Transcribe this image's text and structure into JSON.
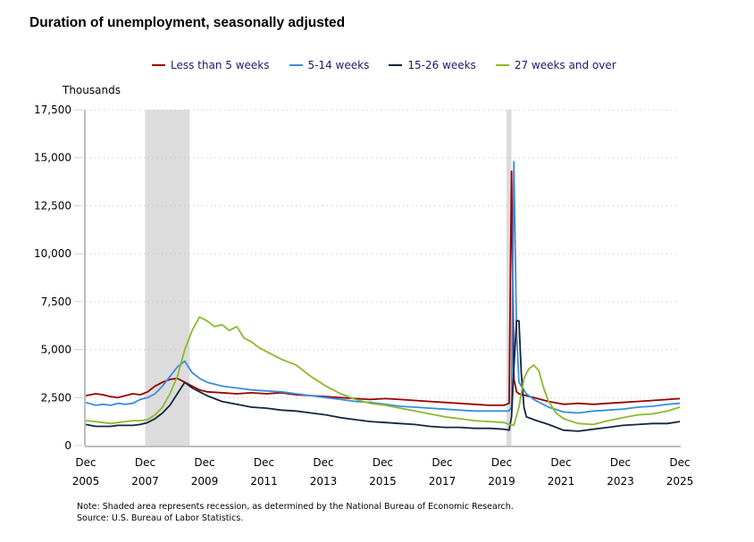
{
  "chart_data": {
    "type": "line",
    "title": "Duration of unemployment, seasonally adjusted",
    "ylabel": "Thousands",
    "xlabel": "",
    "ylim": [
      0,
      17500
    ],
    "yticks": [
      0,
      2500,
      5000,
      7500,
      10000,
      12500,
      15000,
      17500
    ],
    "ytick_labels": [
      "0",
      "2,500",
      "5,000",
      "7,500",
      "10,000",
      "12,500",
      "15,000",
      "17,500"
    ],
    "xlim": [
      2005.917,
      2025.917
    ],
    "xticks": [
      {
        "x": 2005.917,
        "month": "Dec",
        "year": "2005"
      },
      {
        "x": 2007.917,
        "month": "Dec",
        "year": "2007"
      },
      {
        "x": 2009.917,
        "month": "Dec",
        "year": "2009"
      },
      {
        "x": 2011.917,
        "month": "Dec",
        "year": "2011"
      },
      {
        "x": 2013.917,
        "month": "Dec",
        "year": "2013"
      },
      {
        "x": 2015.917,
        "month": "Dec",
        "year": "2015"
      },
      {
        "x": 2017.917,
        "month": "Dec",
        "year": "2017"
      },
      {
        "x": 2019.917,
        "month": "Dec",
        "year": "2019"
      },
      {
        "x": 2021.917,
        "month": "Dec",
        "year": "2021"
      },
      {
        "x": 2023.917,
        "month": "Dec",
        "year": "2023"
      },
      {
        "x": 2025.917,
        "month": "Dec",
        "year": "2025"
      }
    ],
    "grid": "horizontal-dotted",
    "legend_position": "top-center",
    "recessions": [
      [
        2007.917,
        2009.417
      ],
      [
        2020.083,
        2020.25
      ]
    ],
    "series": [
      {
        "name": "Less than 5 weeks",
        "color": "#990000",
        "x": [
          2005.92,
          2006.25,
          2006.5,
          2006.75,
          2007.0,
          2007.25,
          2007.5,
          2007.75,
          2008.0,
          2008.25,
          2008.5,
          2008.75,
          2009.0,
          2009.25,
          2009.5,
          2009.75,
          2010.0,
          2010.5,
          2011.0,
          2011.5,
          2012.0,
          2012.5,
          2013.0,
          2013.5,
          2014.0,
          2014.5,
          2015.0,
          2015.5,
          2016.0,
          2016.5,
          2017.0,
          2017.5,
          2018.0,
          2018.5,
          2019.0,
          2019.5,
          2020.0,
          2020.17,
          2020.25,
          2020.33,
          2020.42,
          2020.5,
          2020.75,
          2021.0,
          2021.5,
          2022.0,
          2022.5,
          2023.0,
          2023.5,
          2024.0,
          2024.5,
          2025.0,
          2025.5,
          2025.92
        ],
        "values": [
          2600,
          2700,
          2650,
          2550,
          2500,
          2600,
          2700,
          2650,
          2800,
          3100,
          3300,
          3450,
          3500,
          3300,
          3100,
          2900,
          2800,
          2750,
          2700,
          2750,
          2700,
          2750,
          2650,
          2600,
          2550,
          2500,
          2450,
          2400,
          2450,
          2400,
          2350,
          2300,
          2250,
          2200,
          2150,
          2100,
          2100,
          2200,
          14300,
          3500,
          2800,
          2700,
          2600,
          2500,
          2300,
          2150,
          2200,
          2150,
          2200,
          2250,
          2300,
          2350,
          2400,
          2450
        ]
      },
      {
        "name": "5-14 weeks",
        "color": "#3c8ddc",
        "x": [
          2005.92,
          2006.25,
          2006.5,
          2006.75,
          2007.0,
          2007.25,
          2007.5,
          2007.75,
          2008.0,
          2008.25,
          2008.5,
          2008.75,
          2009.0,
          2009.25,
          2009.5,
          2009.75,
          2010.0,
          2010.5,
          2011.0,
          2011.5,
          2012.0,
          2012.5,
          2013.0,
          2013.5,
          2014.0,
          2014.5,
          2015.0,
          2015.5,
          2016.0,
          2016.5,
          2017.0,
          2017.5,
          2018.0,
          2018.5,
          2019.0,
          2019.5,
          2020.0,
          2020.17,
          2020.25,
          2020.33,
          2020.42,
          2020.5,
          2020.75,
          2021.0,
          2021.5,
          2022.0,
          2022.5,
          2023.0,
          2023.5,
          2024.0,
          2024.5,
          2025.0,
          2025.5,
          2025.92
        ],
        "values": [
          2250,
          2100,
          2150,
          2100,
          2200,
          2150,
          2200,
          2400,
          2500,
          2700,
          3100,
          3600,
          4100,
          4400,
          3800,
          3500,
          3300,
          3100,
          3000,
          2900,
          2850,
          2800,
          2700,
          2600,
          2500,
          2400,
          2300,
          2250,
          2150,
          2050,
          2000,
          1950,
          1900,
          1850,
          1800,
          1800,
          1800,
          1800,
          2000,
          14800,
          6000,
          3300,
          2700,
          2400,
          2000,
          1750,
          1700,
          1800,
          1850,
          1900,
          2000,
          2050,
          2150,
          2200
        ]
      },
      {
        "name": "15-26 weeks",
        "color": "#14263f",
        "x": [
          2005.92,
          2006.25,
          2006.5,
          2006.75,
          2007.0,
          2007.25,
          2007.5,
          2007.75,
          2008.0,
          2008.25,
          2008.5,
          2008.75,
          2009.0,
          2009.25,
          2009.5,
          2009.75,
          2010.0,
          2010.5,
          2011.0,
          2011.5,
          2012.0,
          2012.5,
          2013.0,
          2013.5,
          2014.0,
          2014.5,
          2015.0,
          2015.5,
          2016.0,
          2016.5,
          2017.0,
          2017.5,
          2018.0,
          2018.5,
          2019.0,
          2019.5,
          2020.0,
          2020.17,
          2020.25,
          2020.33,
          2020.42,
          2020.5,
          2020.58,
          2020.67,
          2020.75,
          2020.92,
          2021.0,
          2021.5,
          2022.0,
          2022.5,
          2023.0,
          2023.5,
          2024.0,
          2024.5,
          2025.0,
          2025.5,
          2025.92
        ],
        "values": [
          1100,
          1000,
          1000,
          1000,
          1050,
          1050,
          1050,
          1100,
          1200,
          1400,
          1700,
          2100,
          2700,
          3300,
          3000,
          2800,
          2600,
          2300,
          2150,
          2000,
          1950,
          1850,
          1800,
          1700,
          1600,
          1450,
          1350,
          1250,
          1200,
          1150,
          1100,
          1000,
          950,
          950,
          900,
          900,
          850,
          800,
          1500,
          4000,
          6500,
          6500,
          3800,
          2000,
          1500,
          1400,
          1350,
          1100,
          800,
          750,
          850,
          950,
          1050,
          1100,
          1150,
          1150,
          1250
        ]
      },
      {
        "name": "27 weeks and over",
        "color": "#8ab92d",
        "x": [
          2005.92,
          2006.25,
          2006.5,
          2006.75,
          2007.0,
          2007.25,
          2007.5,
          2007.75,
          2008.0,
          2008.25,
          2008.5,
          2008.75,
          2009.0,
          2009.25,
          2009.5,
          2009.75,
          2010.0,
          2010.25,
          2010.5,
          2010.75,
          2011.0,
          2011.25,
          2011.5,
          2011.75,
          2012.0,
          2012.5,
          2013.0,
          2013.5,
          2014.0,
          2014.5,
          2015.0,
          2015.5,
          2016.0,
          2016.5,
          2017.0,
          2017.5,
          2018.0,
          2018.5,
          2019.0,
          2019.5,
          2020.0,
          2020.17,
          2020.33,
          2020.5,
          2020.67,
          2020.83,
          2021.0,
          2021.17,
          2021.33,
          2021.5,
          2021.75,
          2022.0,
          2022.5,
          2023.0,
          2023.5,
          2024.0,
          2024.5,
          2025.0,
          2025.5,
          2025.92
        ],
        "values": [
          1300,
          1250,
          1200,
          1150,
          1200,
          1250,
          1300,
          1300,
          1350,
          1600,
          2000,
          2700,
          3600,
          5000,
          6000,
          6700,
          6500,
          6200,
          6300,
          6000,
          6200,
          5600,
          5400,
          5100,
          4900,
          4500,
          4200,
          3600,
          3100,
          2700,
          2400,
          2200,
          2100,
          1950,
          1800,
          1650,
          1500,
          1400,
          1300,
          1250,
          1200,
          1100,
          1050,
          2000,
          3500,
          4000,
          4200,
          3900,
          3000,
          2300,
          1700,
          1400,
          1150,
          1100,
          1300,
          1450,
          1600,
          1650,
          1800,
          2000
        ]
      }
    ],
    "note": "Note: Shaded area represents recession, as determined by the National Bureau of Economic Research.",
    "source": "Source: U.S. Bureau of Labor Statistics."
  }
}
